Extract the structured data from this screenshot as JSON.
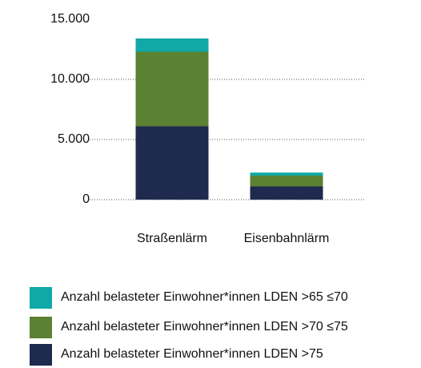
{
  "chart_data": {
    "type": "stacked_bar",
    "categories": [
      "Straßenlärm",
      "Eisenbahnlärm"
    ],
    "series": [
      {
        "name": "Anzahl belasteter Einwohner*innen LDEN >65 ≤70",
        "color": "#10a9a8",
        "values": [
          1100,
          250
        ]
      },
      {
        "name": "Anzahl belasteter Einwohner*innen LDEN >70 ≤75",
        "color": "#5b8132",
        "values": [
          6200,
          900
        ]
      },
      {
        "name": "Anzahl belasteter Einwohner*innen LDEN >75",
        "color": "#1f2a4f",
        "values": [
          6100,
          1100
        ]
      }
    ],
    "ylim": [
      0,
      15000
    ],
    "yticks": [
      0,
      {
        "value": 5000,
        "label": "5.000"
      },
      {
        "value": 10000,
        "label": "10.000"
      },
      {
        "value": 15000,
        "label": "15.000"
      }
    ],
    "grid": true
  }
}
